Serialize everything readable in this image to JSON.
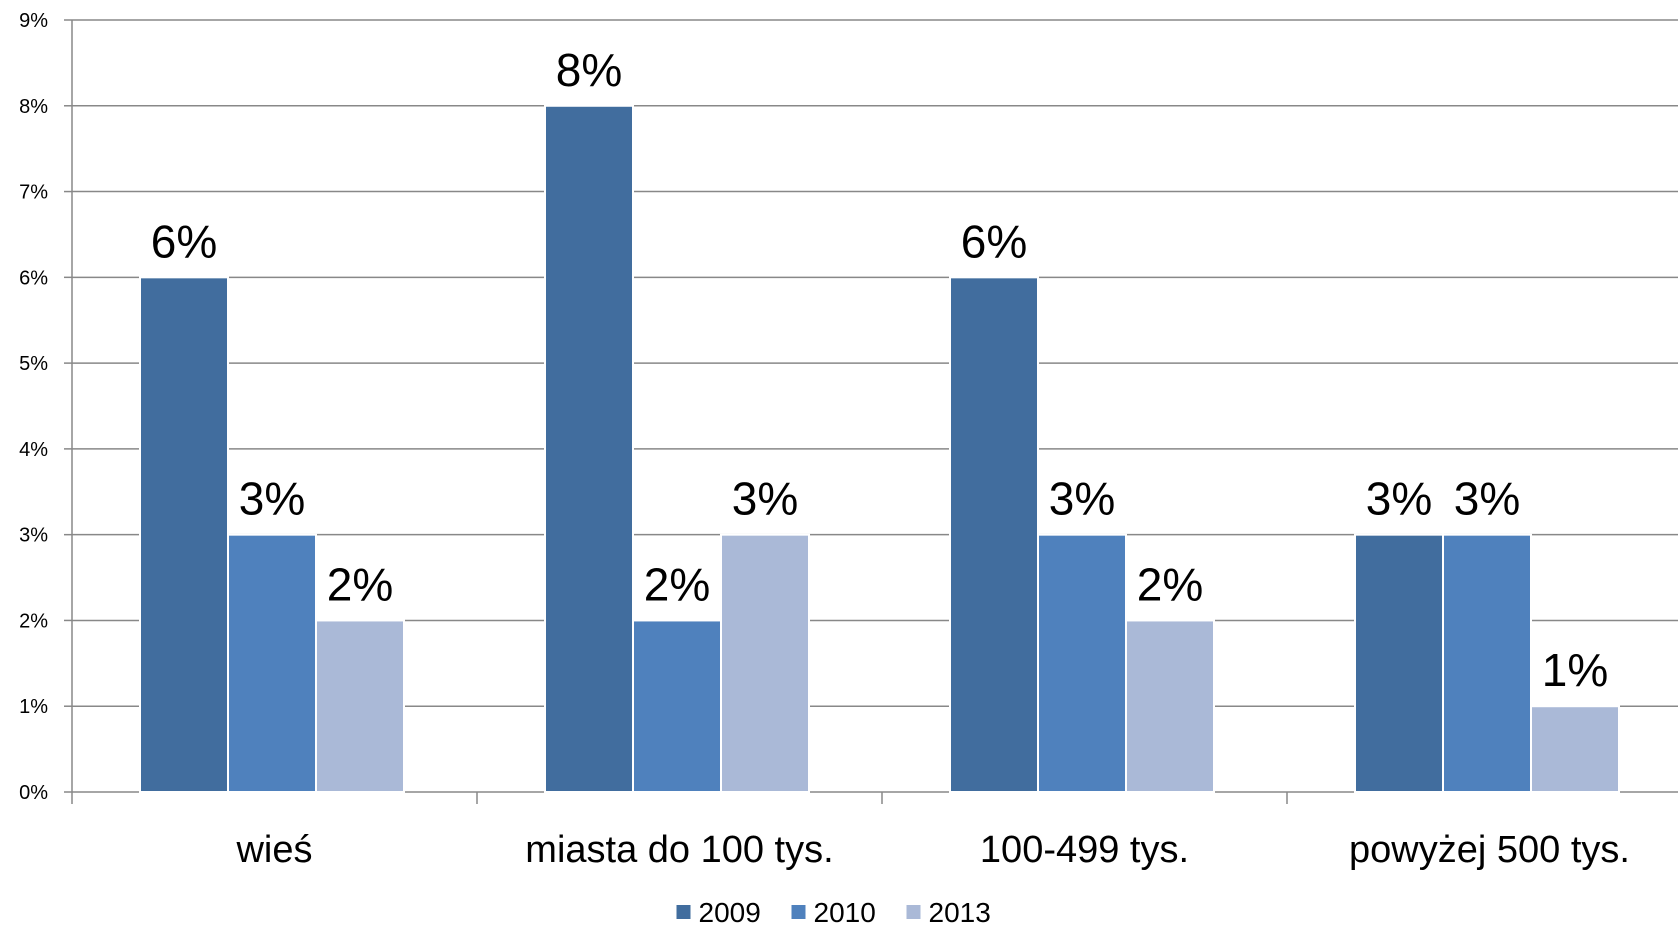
{
  "chart_data": {
    "type": "bar",
    "title": "",
    "xlabel": "",
    "ylabel": "",
    "categories": [
      "wieś",
      "miasta do 100 tys.",
      "100-499 tys.",
      "powyżej 500 tys."
    ],
    "series": [
      {
        "name": "2009",
        "values": [
          6,
          8,
          6,
          3
        ],
        "labels": [
          "6%",
          "8%",
          "6%",
          "3%"
        ],
        "color": "#416D9E"
      },
      {
        "name": "2010",
        "values": [
          3,
          2,
          3,
          3
        ],
        "labels": [
          "3%",
          "2%",
          "3%",
          "3%"
        ],
        "color": "#4F81BD"
      },
      {
        "name": "2013",
        "values": [
          2,
          3,
          2,
          1
        ],
        "labels": [
          "2%",
          "3%",
          "2%",
          "1%"
        ],
        "color": "#AAB9D7"
      }
    ],
    "ylim": [
      0,
      9
    ],
    "yticks": [
      0,
      1,
      2,
      3,
      4,
      5,
      6,
      7,
      8,
      9
    ],
    "ytick_labels": [
      "0%",
      "1%",
      "2%",
      "3%",
      "4%",
      "5%",
      "6%",
      "7%",
      "8%",
      "9%"
    ],
    "grid": true,
    "legend_position": "bottom",
    "gridline_color": "#888888",
    "axis_color": "#888888"
  }
}
